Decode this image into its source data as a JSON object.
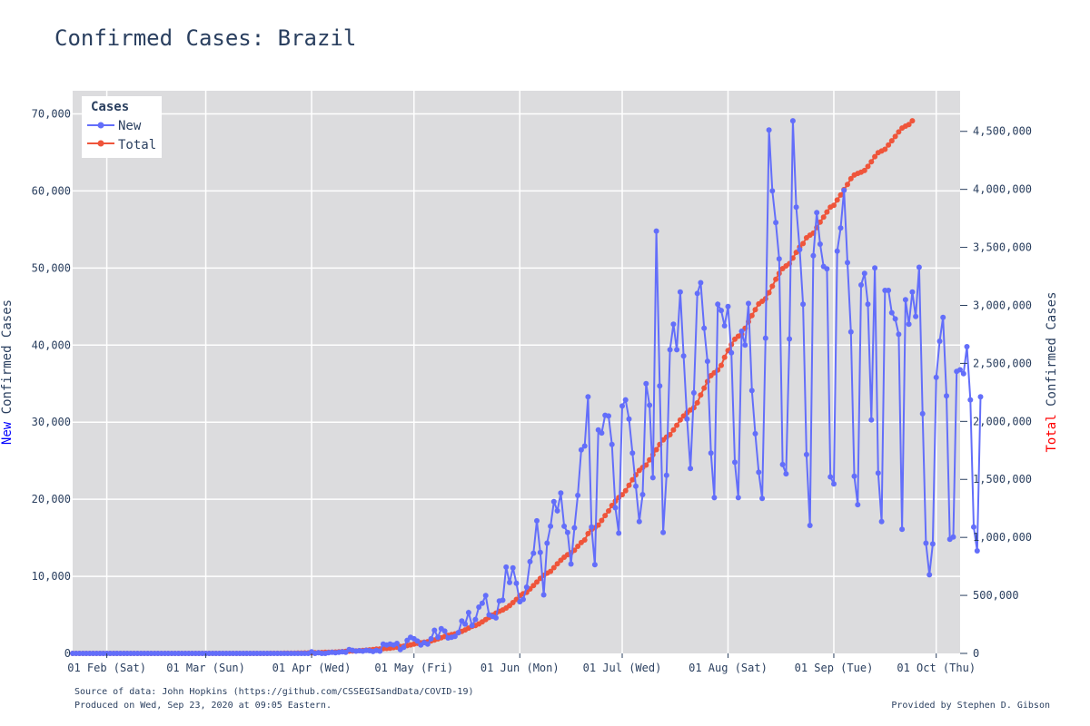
{
  "colors": {
    "plot_bg": "#dcdcde",
    "grid": "#ffffff",
    "new": "#636efa",
    "total": "#ef553b",
    "axis_text": "#2a3f5f",
    "new_word": "#0000ff",
    "total_word": "#ff0000"
  },
  "chart_data": {
    "type": "line",
    "title": "Confirmed Cases: Brazil",
    "x_axis": {
      "type": "date",
      "range": [
        "2020-01-22",
        "2020-10-08"
      ],
      "ticks": [
        {
          "date": "2020-02-01",
          "label": "01 Feb (Sat)"
        },
        {
          "date": "2020-03-01",
          "label": "01 Mar (Sun)"
        },
        {
          "date": "2020-04-01",
          "label": "01 Apr (Wed)"
        },
        {
          "date": "2020-05-01",
          "label": "01 May (Fri)"
        },
        {
          "date": "2020-06-01",
          "label": "01 Jun (Mon)"
        },
        {
          "date": "2020-07-01",
          "label": "01 Jul (Wed)"
        },
        {
          "date": "2020-08-01",
          "label": "01 Aug (Sat)"
        },
        {
          "date": "2020-09-01",
          "label": "01 Sep (Tue)"
        },
        {
          "date": "2020-10-01",
          "label": "01 Oct (Thu)"
        }
      ]
    },
    "y_left": {
      "label_word": "New",
      "label_rest": " Confirmed Cases",
      "range": [
        0,
        73000
      ],
      "ticks": [
        {
          "value": 0,
          "label": "0"
        },
        {
          "value": 10000,
          "label": "10,000"
        },
        {
          "value": 20000,
          "label": "20,000"
        },
        {
          "value": 30000,
          "label": "30,000"
        },
        {
          "value": 40000,
          "label": "40,000"
        },
        {
          "value": 50000,
          "label": "50,000"
        },
        {
          "value": 60000,
          "label": "60,000"
        },
        {
          "value": 70000,
          "label": "70,000"
        }
      ]
    },
    "y_right": {
      "label_word": "Total",
      "label_rest": " Confirmed Cases",
      "range": [
        0,
        4850000
      ],
      "ticks": [
        {
          "value": 0,
          "label": "0"
        },
        {
          "value": 500000,
          "label": "500,000"
        },
        {
          "value": 1000000,
          "label": "1,000,000"
        },
        {
          "value": 1500000,
          "label": "1,500,000"
        },
        {
          "value": 2000000,
          "label": "2,000,000"
        },
        {
          "value": 2500000,
          "label": "2,500,000"
        },
        {
          "value": 3000000,
          "label": "3,000,000"
        },
        {
          "value": 3500000,
          "label": "3,500,000"
        },
        {
          "value": 4000000,
          "label": "4,000,000"
        },
        {
          "value": 4500000,
          "label": "4,500,000"
        }
      ]
    },
    "legend": {
      "title": "Cases",
      "position": "top-left",
      "entries": [
        "New",
        "Total"
      ]
    },
    "series": [
      {
        "name": "New",
        "axis": "left",
        "start_date": "2020-01-22",
        "values": [
          0,
          0,
          0,
          0,
          0,
          0,
          0,
          0,
          0,
          0,
          0,
          0,
          0,
          0,
          0,
          0,
          0,
          0,
          0,
          0,
          0,
          0,
          0,
          0,
          0,
          0,
          0,
          0,
          0,
          0,
          0,
          0,
          0,
          0,
          0,
          0,
          0,
          0,
          0,
          0,
          0,
          0,
          0,
          0,
          0,
          0,
          0,
          0,
          0,
          0,
          0,
          0,
          0,
          0,
          0,
          0,
          0,
          0,
          0,
          0,
          0,
          0,
          0,
          0,
          0,
          0,
          0,
          0,
          0,
          0,
          200,
          0,
          100,
          0,
          0,
          100,
          150,
          100,
          150,
          200,
          150,
          500,
          400,
          300,
          350,
          300,
          400,
          350,
          250,
          400,
          300,
          1200,
          1100,
          1200,
          1100,
          1300,
          500,
          800,
          1700,
          2100,
          1900,
          1600,
          1100,
          1400,
          1200,
          1900,
          3000,
          2100,
          3200,
          2900,
          2000,
          2100,
          2200,
          2700,
          4200,
          3800,
          5300,
          3600,
          4400,
          6000,
          6500,
          7500,
          5000,
          4800,
          4600,
          6800,
          6900,
          11200,
          9200,
          11100,
          9100,
          6700,
          7000,
          8600,
          11900,
          13000,
          17200,
          13100,
          7600,
          14300,
          16500,
          19700,
          18500,
          20800,
          16500,
          15700,
          11600,
          16300,
          20500,
          26400,
          26900,
          33300,
          16400,
          11500,
          29000,
          28600,
          30900,
          30800,
          27100,
          18900,
          15600,
          32100,
          32900,
          30400,
          26000,
          21700,
          17100,
          20600,
          35000,
          32200,
          22800,
          54800,
          34700,
          15700,
          23100,
          39400,
          42700,
          39400,
          46900,
          38600,
          30400,
          24000,
          33800,
          46700,
          48100,
          42200,
          37900,
          26000,
          20200,
          45300,
          44500,
          42500,
          45000,
          39000,
          24800,
          20200,
          41800,
          40000,
          45400,
          34100,
          28500,
          23500,
          20100,
          40900,
          67900,
          60000,
          55900,
          51200,
          24500,
          23300,
          40800,
          69100,
          57900,
          52400,
          45300,
          25800,
          16600,
          51600,
          57200,
          53100,
          50200,
          49900,
          22900,
          22000,
          52200,
          55200,
          60100,
          50700,
          41700,
          23000,
          19300,
          47800,
          49300,
          45300,
          30300,
          50000,
          23400,
          17100,
          47100,
          47100,
          44200,
          43400,
          41400,
          16100,
          45900,
          42700,
          46900,
          43700,
          50100,
          31100,
          14300,
          10200,
          14200,
          35800,
          40500,
          43600,
          33400,
          14800,
          15100,
          36600,
          36800,
          36300,
          39800,
          32900,
          16400,
          13300,
          33300
        ]
      },
      {
        "name": "Total",
        "axis": "right",
        "start_date": "2020-01-22",
        "values": [
          0,
          0,
          0,
          0,
          0,
          0,
          0,
          0,
          0,
          0,
          0,
          0,
          0,
          0,
          0,
          0,
          0,
          0,
          0,
          0,
          0,
          0,
          0,
          0,
          0,
          0,
          0,
          0,
          0,
          0,
          0,
          0,
          0,
          0,
          0,
          0,
          1,
          1,
          1,
          2,
          2,
          2,
          2,
          4,
          4,
          13,
          13,
          20,
          25,
          31,
          38,
          52,
          77,
          98,
          121,
          200,
          234,
          291,
          428,
          621,
          904,
          1128,
          1546,
          1891,
          2201,
          2433,
          2915,
          3417,
          3904,
          4256,
          4579,
          5717,
          6836,
          7910,
          9056,
          10278,
          11130,
          12056,
          13717,
          15927,
          17857,
          19638,
          20727,
          22169,
          23430,
          25262,
          28320,
          30425,
          33682,
          36599,
          38654,
          40743,
          43079,
          45757,
          50036,
          54043,
          59324,
          62859,
          67446,
          73235,
          79685,
          87187,
          92202,
          97100,
          101147,
          107780,
          114715,
          125218,
          135106,
          145328,
          155939,
          162699,
          168331,
          177589,
          188974,
          202918,
          218223,
          233142,
          241080,
          254220,
          271628,
          291579,
          310087,
          330890,
          347398,
          363211,
          374898,
          391222,
          411821,
          438238,
          465166,
          498440,
          514849,
          526447,
          555383,
          584016,
          614941,
          645771,
          672846,
          691758,
          707412,
          739503,
          772416,
          802828,
          828810,
          850514,
          867624,
          888271,
          923189,
          955377,
          978142,
          1032913,
          1067579,
          1083341,
          1106470,
          1145906,
          1188631,
          1228114,
          1274974,
          1313667,
          1344143,
          1368195,
          1402041,
          1448753,
          1496858,
          1539081,
          1577004,
          1603055,
          1623284,
          1668589,
          1713160,
          1755779,
          1800827,
          1839850,
          1864681,
          1884967,
          1926824,
          1966748,
          2012151,
          2046328,
          2074860,
          2098389,
          2118646,
          2159654,
          2227514,
          2287475,
          2343366,
          2394513,
          2419091,
          2442375,
          2483191,
          2552265,
          2610102,
          2662485,
          2707877,
          2733677,
          2750318,
          2801921,
          2859073,
          2912212,
          2962442,
          3012412,
          3035422,
          3057470,
          3109630,
          3164785,
          3224876,
          3275520,
          3317096,
          3340197,
          3359570,
          3407354,
          3456652,
          3501975,
          3532330,
          3582362,
          3605783,
          3622861,
          3669995,
          3717156,
          3761391,
          3804803,
          3846153,
          3862311,
          3908272,
          3950931,
          3997865,
          4041638,
          4091801,
          4123000,
          4137521,
          4147794,
          4162073,
          4197889,
          4238446,
          4282164,
          4315687,
          4330455,
          4345610,
          4382263,
          4419083,
          4455386,
          4495183,
          4528240,
          4544629,
          4558040,
          4591364
        ]
      }
    ]
  },
  "footer": {
    "source": "Source of data: John Hopkins (https://github.com/CSSEGISandData/COVID-19)",
    "produced": "Produced on Wed, Sep 23, 2020 at 09:05 Eastern.",
    "credit": "Provided by Stephen D. Gibson"
  }
}
